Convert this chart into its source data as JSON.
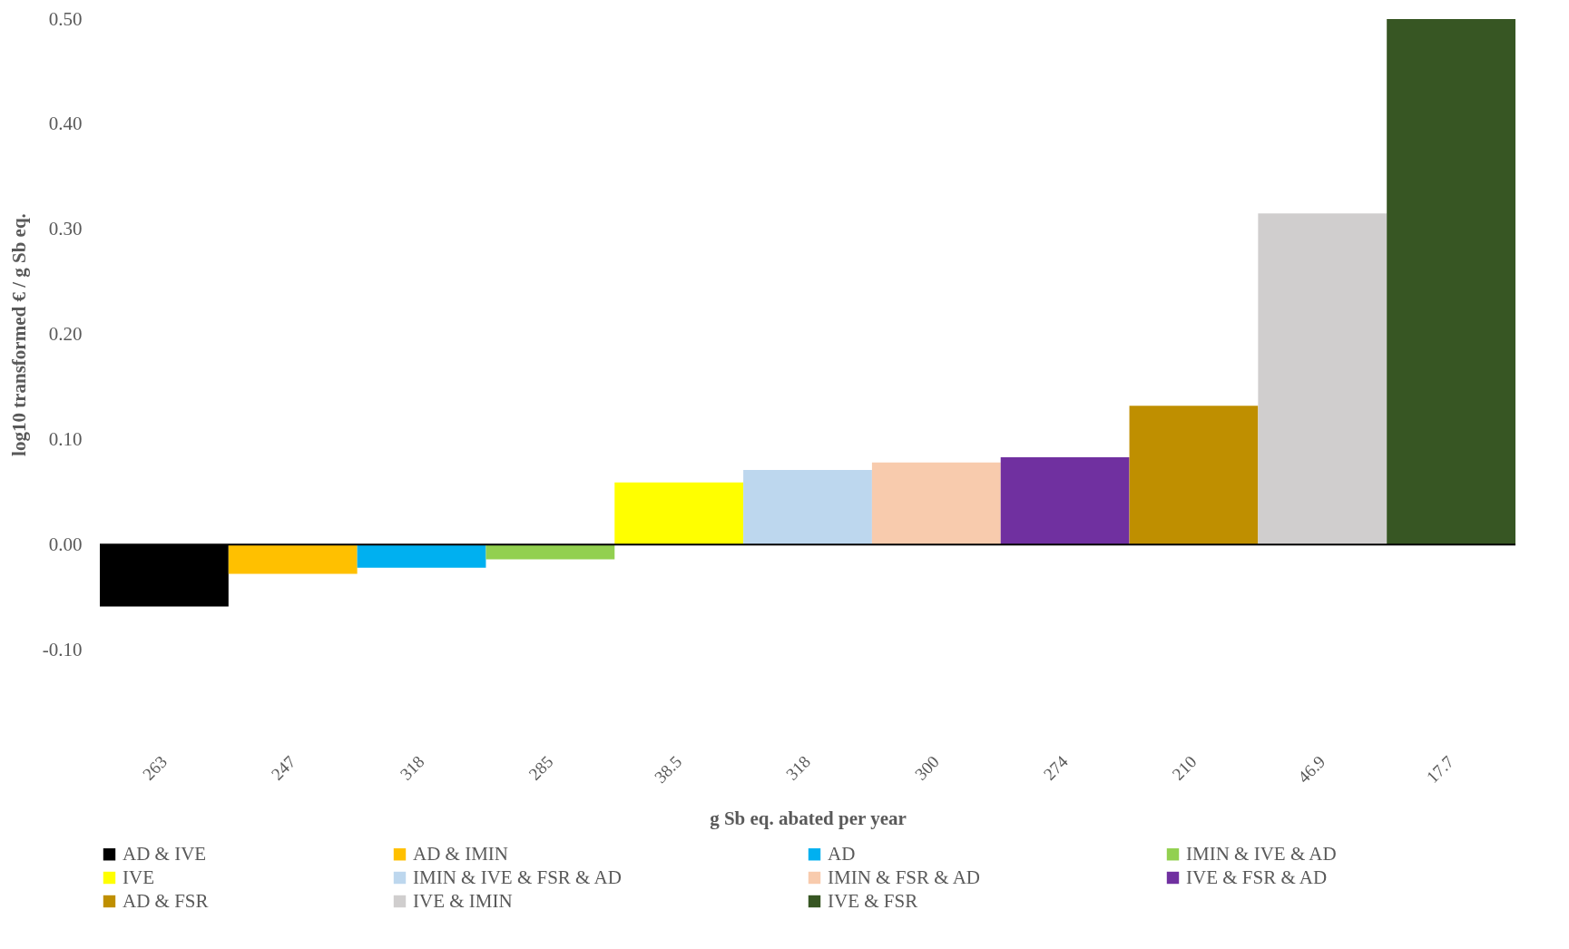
{
  "chart_data": {
    "type": "bar",
    "xlabel": "g Sb eq. abated per year",
    "ylabel": "log10 transformed € / g Sb eq.",
    "categories": [
      "263",
      "247",
      "318",
      "285",
      "38.5",
      "318",
      "300",
      "274",
      "210",
      "46.9",
      "17.7"
    ],
    "series": [
      {
        "name": "AD & IVE",
        "color": "#000000",
        "values": [
          -0.059,
          null,
          null,
          null,
          null,
          null,
          null,
          null,
          null,
          null,
          null
        ]
      },
      {
        "name": "AD & IMIN",
        "color": "#ffc000",
        "values": [
          null,
          -0.028,
          null,
          null,
          null,
          null,
          null,
          null,
          null,
          null,
          null
        ]
      },
      {
        "name": "AD",
        "color": "#00b0f0",
        "values": [
          null,
          null,
          -0.022,
          null,
          null,
          null,
          null,
          null,
          null,
          null,
          null
        ]
      },
      {
        "name": "IMIN & IVE & AD",
        "color": "#92d050",
        "values": [
          null,
          null,
          null,
          -0.014,
          null,
          null,
          null,
          null,
          null,
          null,
          null
        ]
      },
      {
        "name": "IVE",
        "color": "#ffff00",
        "values": [
          null,
          null,
          null,
          null,
          0.059,
          null,
          null,
          null,
          null,
          null,
          null
        ]
      },
      {
        "name": "IMIN & IVE & FSR & AD",
        "color": "#bdd7ee",
        "values": [
          null,
          null,
          null,
          null,
          null,
          0.071,
          null,
          null,
          null,
          null,
          null
        ]
      },
      {
        "name": "IMIN & FSR & AD",
        "color": "#f8cbad",
        "values": [
          null,
          null,
          null,
          null,
          null,
          null,
          0.078,
          null,
          null,
          null,
          null
        ]
      },
      {
        "name": "IVE & FSR & AD",
        "color": "#7030a0",
        "values": [
          null,
          null,
          null,
          null,
          null,
          null,
          null,
          0.083,
          null,
          null,
          null
        ]
      },
      {
        "name": "AD & FSR",
        "color": "#bf8f00",
        "values": [
          null,
          null,
          null,
          null,
          null,
          null,
          null,
          null,
          0.132,
          null,
          null
        ]
      },
      {
        "name": "IVE & IMIN",
        "color": "#d0cece",
        "values": [
          null,
          null,
          null,
          null,
          null,
          null,
          null,
          null,
          null,
          0.315,
          null
        ]
      },
      {
        "name": "IVE & FSR",
        "color": "#375623",
        "values": [
          null,
          null,
          null,
          null,
          null,
          null,
          null,
          null,
          null,
          null,
          0.5
        ]
      }
    ],
    "ylim": [
      -0.1,
      0.5
    ],
    "yticks": [
      {
        "value": -0.1,
        "label": "-0.10"
      },
      {
        "value": 0,
        "label": "0.00"
      },
      {
        "value": 0.1,
        "label": "0.10"
      },
      {
        "value": 0.2,
        "label": "0.20"
      },
      {
        "value": 0.3,
        "label": "0.30"
      },
      {
        "value": 0.4,
        "label": "0.40"
      },
      {
        "value": 0.5,
        "label": "0.50"
      }
    ],
    "ref_lines": [
      {
        "axis": "y",
        "value": 0,
        "color": "#000000"
      }
    ],
    "grid": false,
    "legend": "bottom"
  }
}
